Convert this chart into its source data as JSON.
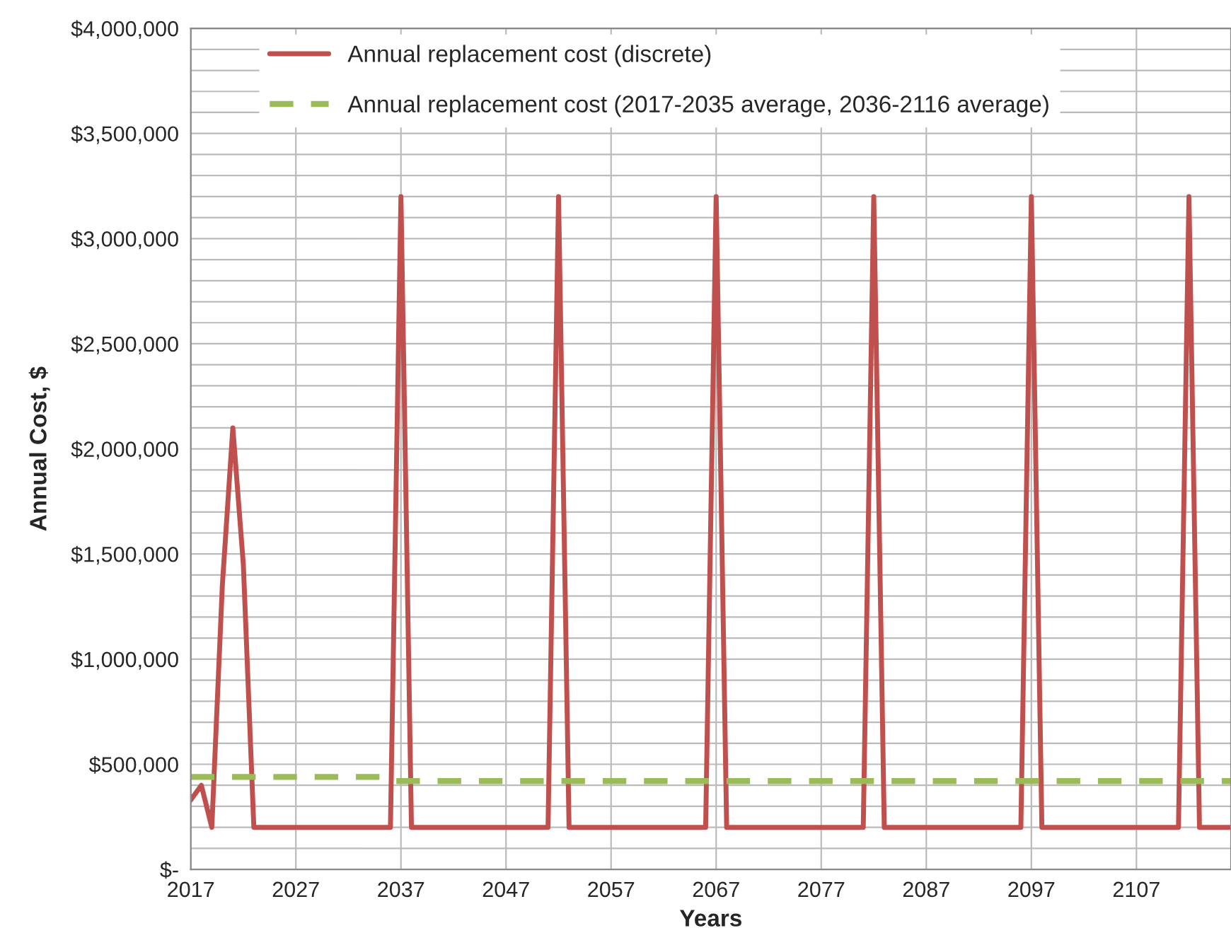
{
  "chart_data": {
    "type": "line",
    "xlabel": "Years",
    "ylabel": "Annual Cost, $",
    "x": [
      2017,
      2018,
      2019,
      2020,
      2021,
      2022,
      2023,
      2024,
      2025,
      2026,
      2027,
      2028,
      2029,
      2030,
      2031,
      2032,
      2033,
      2034,
      2035,
      2036,
      2037,
      2038,
      2039,
      2040,
      2041,
      2042,
      2043,
      2044,
      2045,
      2046,
      2047,
      2048,
      2049,
      2050,
      2051,
      2052,
      2053,
      2054,
      2055,
      2056,
      2057,
      2058,
      2059,
      2060,
      2061,
      2062,
      2063,
      2064,
      2065,
      2066,
      2067,
      2068,
      2069,
      2070,
      2071,
      2072,
      2073,
      2074,
      2075,
      2076,
      2077,
      2078,
      2079,
      2080,
      2081,
      2082,
      2083,
      2084,
      2085,
      2086,
      2087,
      2088,
      2089,
      2090,
      2091,
      2092,
      2093,
      2094,
      2095,
      2096,
      2097,
      2098,
      2099,
      2100,
      2101,
      2102,
      2103,
      2104,
      2105,
      2106,
      2107,
      2108,
      2109,
      2110,
      2111,
      2112,
      2113,
      2114,
      2115,
      2116
    ],
    "series": [
      {
        "name": "Annual replacement cost (discrete)",
        "color": "#c0504d",
        "line_style": "solid",
        "values": [
          330000,
          400000,
          200000,
          1350000,
          2100000,
          1450000,
          200000,
          200000,
          200000,
          200000,
          200000,
          200000,
          200000,
          200000,
          200000,
          200000,
          200000,
          200000,
          200000,
          200000,
          3200000,
          200000,
          200000,
          200000,
          200000,
          200000,
          200000,
          200000,
          200000,
          200000,
          200000,
          200000,
          200000,
          200000,
          200000,
          3200000,
          200000,
          200000,
          200000,
          200000,
          200000,
          200000,
          200000,
          200000,
          200000,
          200000,
          200000,
          200000,
          200000,
          200000,
          3200000,
          200000,
          200000,
          200000,
          200000,
          200000,
          200000,
          200000,
          200000,
          200000,
          200000,
          200000,
          200000,
          200000,
          200000,
          3200000,
          200000,
          200000,
          200000,
          200000,
          200000,
          200000,
          200000,
          200000,
          200000,
          200000,
          200000,
          200000,
          200000,
          200000,
          3200000,
          200000,
          200000,
          200000,
          200000,
          200000,
          200000,
          200000,
          200000,
          200000,
          200000,
          200000,
          200000,
          200000,
          200000,
          3200000,
          200000,
          200000,
          200000,
          200000
        ]
      },
      {
        "name": "Annual replacement cost (2017-2035 average, 2036-2116 average)",
        "color": "#9bbb59",
        "line_style": "dashed",
        "values": [
          440000,
          440000,
          440000,
          440000,
          440000,
          440000,
          440000,
          440000,
          440000,
          440000,
          440000,
          440000,
          440000,
          440000,
          440000,
          440000,
          440000,
          440000,
          440000,
          420000,
          420000,
          420000,
          420000,
          420000,
          420000,
          420000,
          420000,
          420000,
          420000,
          420000,
          420000,
          420000,
          420000,
          420000,
          420000,
          420000,
          420000,
          420000,
          420000,
          420000,
          420000,
          420000,
          420000,
          420000,
          420000,
          420000,
          420000,
          420000,
          420000,
          420000,
          420000,
          420000,
          420000,
          420000,
          420000,
          420000,
          420000,
          420000,
          420000,
          420000,
          420000,
          420000,
          420000,
          420000,
          420000,
          420000,
          420000,
          420000,
          420000,
          420000,
          420000,
          420000,
          420000,
          420000,
          420000,
          420000,
          420000,
          420000,
          420000,
          420000,
          420000,
          420000,
          420000,
          420000,
          420000,
          420000,
          420000,
          420000,
          420000,
          420000,
          420000,
          420000,
          420000,
          420000,
          420000,
          420000,
          420000,
          420000,
          420000,
          420000
        ]
      }
    ],
    "xlim": [
      2017,
      2116
    ],
    "xticks": [
      2017,
      2027,
      2037,
      2047,
      2057,
      2067,
      2077,
      2087,
      2097,
      2107
    ],
    "ylim": [
      0,
      4000000
    ],
    "yticks": [
      {
        "value": 0,
        "label": "$-"
      },
      {
        "value": 100000,
        "label": null
      },
      {
        "value": 200000,
        "label": null
      },
      {
        "value": 300000,
        "label": null
      },
      {
        "value": 400000,
        "label": null
      },
      {
        "value": 500000,
        "label": "$500,000"
      },
      {
        "value": 600000,
        "label": null
      },
      {
        "value": 700000,
        "label": null
      },
      {
        "value": 800000,
        "label": null
      },
      {
        "value": 900000,
        "label": null
      },
      {
        "value": 1000000,
        "label": "$1,000,000"
      },
      {
        "value": 1100000,
        "label": null
      },
      {
        "value": 1200000,
        "label": null
      },
      {
        "value": 1300000,
        "label": null
      },
      {
        "value": 1400000,
        "label": null
      },
      {
        "value": 1500000,
        "label": "$1,500,000"
      },
      {
        "value": 1600000,
        "label": null
      },
      {
        "value": 1700000,
        "label": null
      },
      {
        "value": 1800000,
        "label": null
      },
      {
        "value": 1900000,
        "label": null
      },
      {
        "value": 2000000,
        "label": "$2,000,000"
      },
      {
        "value": 2100000,
        "label": null
      },
      {
        "value": 2200000,
        "label": null
      },
      {
        "value": 2300000,
        "label": null
      },
      {
        "value": 2400000,
        "label": null
      },
      {
        "value": 2500000,
        "label": "$2,500,000"
      },
      {
        "value": 2600000,
        "label": null
      },
      {
        "value": 2700000,
        "label": null
      },
      {
        "value": 2800000,
        "label": null
      },
      {
        "value": 2900000,
        "label": null
      },
      {
        "value": 3000000,
        "label": "$3,000,000"
      },
      {
        "value": 3100000,
        "label": null
      },
      {
        "value": 3200000,
        "label": null
      },
      {
        "value": 3300000,
        "label": null
      },
      {
        "value": 3400000,
        "label": null
      },
      {
        "value": 3500000,
        "label": "$3,500,000"
      },
      {
        "value": 3600000,
        "label": null
      },
      {
        "value": 3700000,
        "label": null
      },
      {
        "value": 3800000,
        "label": null
      },
      {
        "value": 3900000,
        "label": null
      },
      {
        "value": 4000000,
        "label": "$4,000,000"
      }
    ],
    "grid": true,
    "legend": "top left",
    "marker": "none"
  }
}
